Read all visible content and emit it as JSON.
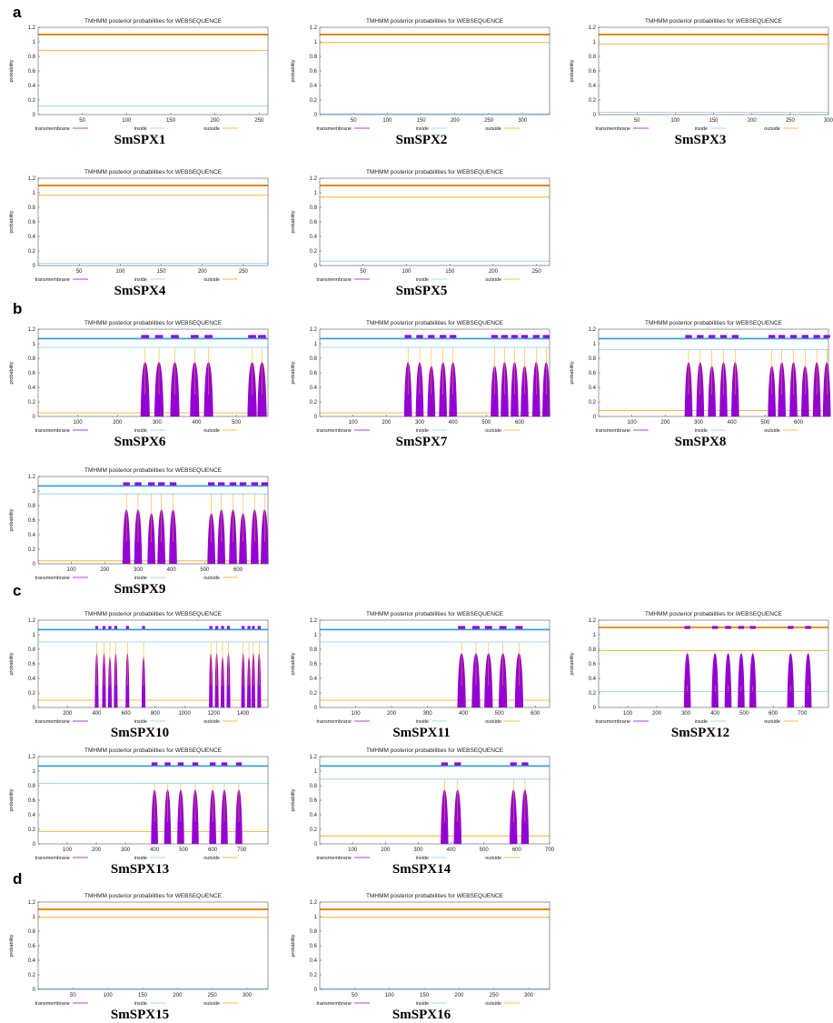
{
  "sections": [
    "a",
    "b",
    "c",
    "d"
  ],
  "common": {
    "title": "TMHMM posterior probabilities for WEBSEQUENCE",
    "ylabel": "probability",
    "legend": [
      "transmembrane",
      "inside",
      "outside"
    ],
    "yticks": [
      "0",
      "0.2",
      "0.4",
      "0.6",
      "0.8",
      "1",
      "1.2"
    ]
  },
  "colors": {
    "tm": "#9400d3",
    "inside": "#87cefa",
    "outside": "#ffa500",
    "topInside": "#3aa0e0",
    "topOutside": "#e08a00"
  },
  "chart_data": [
    {
      "type": "line",
      "name": "SmSPX1",
      "len": 260,
      "xticks": [
        50,
        100,
        150,
        200,
        250
      ],
      "ylim": [
        0,
        1.2
      ],
      "top": "outside",
      "inside": 0.12,
      "outside": 0.88,
      "helices": []
    },
    {
      "type": "line",
      "name": "SmSPX2",
      "len": 340,
      "xticks": [
        50,
        100,
        150,
        200,
        250,
        300
      ],
      "ylim": [
        0,
        1.2
      ],
      "top": "outside",
      "inside": 0.01,
      "outside": 0.99,
      "helices": []
    },
    {
      "type": "line",
      "name": "SmSPX3",
      "len": 300,
      "xticks": [
        50,
        100,
        150,
        200,
        250,
        300
      ],
      "ylim": [
        0,
        1.2
      ],
      "top": "outside",
      "inside": 0.03,
      "outside": 0.97,
      "helices": []
    },
    {
      "type": "line",
      "name": "SmSPX4",
      "len": 280,
      "xticks": [
        50,
        100,
        150,
        200,
        250
      ],
      "ylim": [
        0,
        1.2
      ],
      "top": "outside",
      "inside": 0.03,
      "outside": 0.97,
      "helices": []
    },
    {
      "type": "line",
      "name": "SmSPX5",
      "len": 265,
      "xticks": [
        50,
        100,
        150,
        200,
        250
      ],
      "ylim": [
        0,
        1.2
      ],
      "top": "outside",
      "inside": 0.06,
      "outside": 0.94,
      "helices": []
    },
    {
      "type": "line",
      "name": "SmSPX6",
      "len": 580,
      "xticks": [
        100,
        200,
        300,
        400,
        500
      ],
      "ylim": [
        0,
        1.2
      ],
      "top": "inside",
      "inside": 0.95,
      "outside": 0.05,
      "helices": [
        270,
        305,
        345,
        395,
        430,
        540,
        565
      ]
    },
    {
      "type": "line",
      "name": "SmSPX7",
      "len": 690,
      "xticks": [
        100,
        200,
        300,
        400,
        500,
        600
      ],
      "ylim": [
        0,
        1.2
      ],
      "top": "inside",
      "inside": 0.95,
      "outside": 0.05,
      "helices": [
        265,
        300,
        335,
        370,
        400,
        525,
        555,
        585,
        615,
        650,
        680
      ]
    },
    {
      "type": "line",
      "name": "SmSPX8",
      "len": 690,
      "xticks": [
        100,
        200,
        300,
        400,
        500,
        600
      ],
      "ylim": [
        0,
        1.2
      ],
      "top": "inside",
      "inside": 0.92,
      "outside": 0.08,
      "helices": [
        270,
        305,
        340,
        375,
        410,
        520,
        550,
        585,
        620,
        655,
        685
      ]
    },
    {
      "type": "line",
      "name": "SmSPX9",
      "len": 690,
      "xticks": [
        100,
        200,
        300,
        400,
        500,
        600
      ],
      "ylim": [
        0,
        1.2
      ],
      "top": "inside",
      "inside": 0.96,
      "outside": 0.04,
      "helices": [
        265,
        300,
        340,
        370,
        405,
        520,
        550,
        585,
        615,
        650,
        680
      ]
    },
    {
      "type": "line",
      "name": "SmSPX10",
      "len": 1570,
      "xticks": [
        200,
        400,
        600,
        800,
        1000,
        1200,
        1400
      ],
      "ylim": [
        0,
        1.2
      ],
      "top": "inside",
      "inside": 0.9,
      "outside": 0.1,
      "helices": [
        400,
        450,
        490,
        530,
        610,
        720,
        1180,
        1220,
        1260,
        1300,
        1400,
        1440,
        1470,
        1510
      ]
    },
    {
      "type": "line",
      "name": "SmSPX11",
      "len": 640,
      "xticks": [
        100,
        200,
        300,
        400,
        500,
        600
      ],
      "ylim": [
        0,
        1.2
      ],
      "top": "inside",
      "inside": 0.9,
      "outside": 0.1,
      "helices": [
        395,
        435,
        470,
        510,
        555
      ]
    },
    {
      "type": "line",
      "name": "SmSPX12",
      "len": 790,
      "xticks": [
        100,
        200,
        300,
        400,
        500,
        600,
        700
      ],
      "ylim": [
        0,
        1.2
      ],
      "top": "outside",
      "inside": 0.22,
      "outside": 0.78,
      "helices": [
        305,
        400,
        445,
        490,
        530,
        660,
        720
      ]
    },
    {
      "type": "line",
      "name": "SmSPX13",
      "len": 790,
      "xticks": [
        100,
        200,
        300,
        400,
        500,
        600,
        700
      ],
      "ylim": [
        0,
        1.2
      ],
      "top": "inside",
      "inside": 0.83,
      "outside": 0.17,
      "helices": [
        400,
        445,
        490,
        540,
        600,
        640,
        690
      ]
    },
    {
      "type": "line",
      "name": "SmSPX14",
      "len": 700,
      "xticks": [
        100,
        200,
        300,
        400,
        500,
        600,
        700
      ],
      "ylim": [
        0,
        1.2
      ],
      "top": "inside",
      "inside": 0.89,
      "outside": 0.11,
      "helices": [
        380,
        420,
        590,
        625
      ]
    },
    {
      "type": "line",
      "name": "SmSPX15",
      "len": 330,
      "xticks": [
        50,
        100,
        150,
        200,
        250,
        300
      ],
      "ylim": [
        0,
        1.2
      ],
      "top": "outside",
      "inside": 0.01,
      "outside": 0.99,
      "helices": []
    },
    {
      "type": "line",
      "name": "SmSPX16",
      "len": 330,
      "xticks": [
        50,
        100,
        150,
        200,
        250,
        300
      ],
      "ylim": [
        0,
        1.2
      ],
      "top": "outside",
      "inside": 0.01,
      "outside": 0.99,
      "helices": []
    }
  ]
}
